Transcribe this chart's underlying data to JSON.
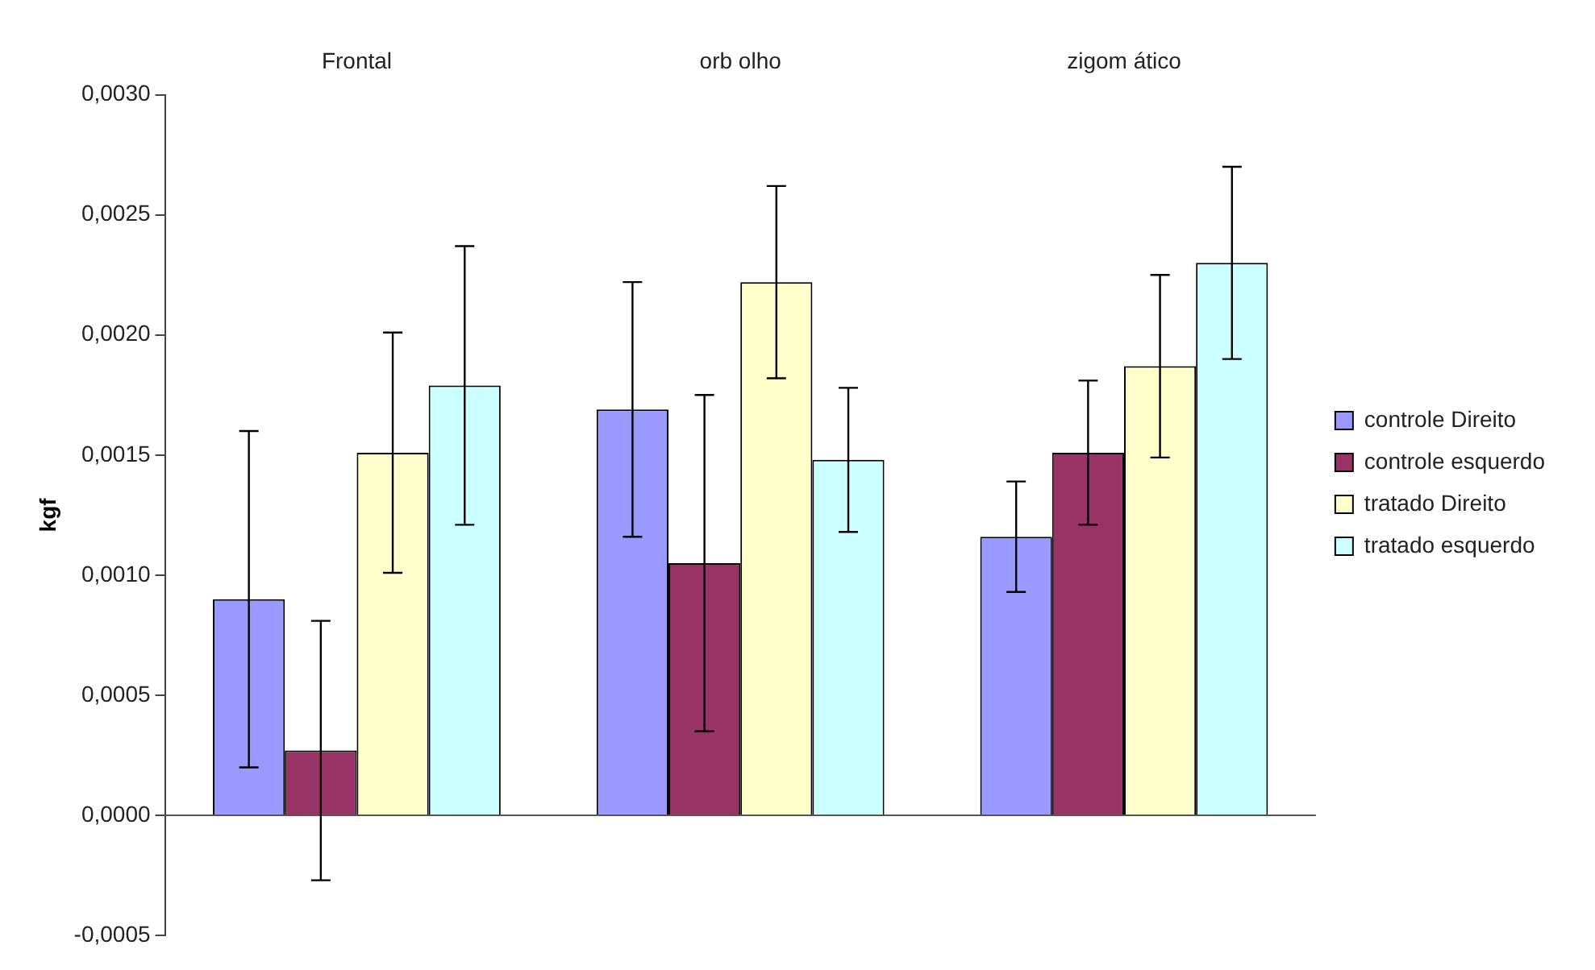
{
  "chart_data": {
    "type": "bar",
    "categories": [
      "Frontal",
      "orb olho",
      "zigom ático"
    ],
    "ylabel": "kgf",
    "ylim": [
      -0.0005,
      0.003
    ],
    "yticks": [
      {
        "value": -0.0005,
        "label": "-0,0005"
      },
      {
        "value": 0,
        "label": "0,0000"
      },
      {
        "value": 0.0005,
        "label": "0,0005"
      },
      {
        "value": 0.001,
        "label": "0,0010"
      },
      {
        "value": 0.0015,
        "label": "0,0015"
      },
      {
        "value": 0.002,
        "label": "0,0020"
      },
      {
        "value": 0.0025,
        "label": "0,0025"
      },
      {
        "value": 0.003,
        "label": "0,0030"
      }
    ],
    "legend": "right",
    "series": [
      {
        "name": "controle Direito",
        "color": "#9999ff",
        "values": [
          0.0009,
          0.00169,
          0.00116
        ],
        "errors": [
          0.0007,
          0.00053,
          0.00023
        ]
      },
      {
        "name": "controle esquerdo",
        "color": "#993366",
        "values": [
          0.00027,
          0.00105,
          0.00151
        ],
        "errors": [
          0.00054,
          0.0007,
          0.0003
        ]
      },
      {
        "name": "tratado Direito",
        "color": "#ffffcc",
        "values": [
          0.00151,
          0.00222,
          0.00187
        ],
        "errors": [
          0.0005,
          0.0004,
          0.00038
        ]
      },
      {
        "name": "tratado esquerdo",
        "color": "#ccffff",
        "values": [
          0.00179,
          0.00148,
          0.0023
        ],
        "errors": [
          0.00058,
          0.0003,
          0.0004
        ]
      }
    ]
  }
}
